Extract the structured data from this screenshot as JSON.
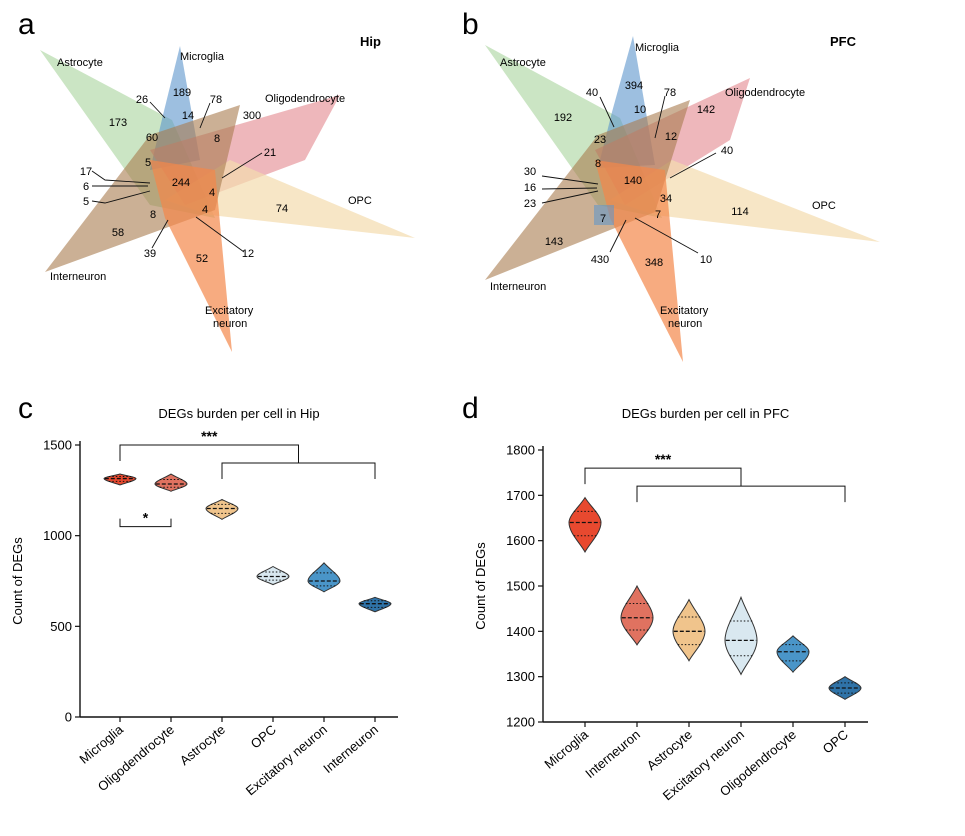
{
  "colors": {
    "microglia": "#e8492f",
    "oligodendrocyte": "#e07260",
    "astrocyte": "#f0c48c",
    "opc": "#d9e8f0",
    "excitatory": "#4a95c8",
    "interneuron": "#2f73a8",
    "venn_astrocyte": "#a8d39c",
    "venn_microglia": "#5b95cc",
    "venn_oligo": "#e07b84",
    "venn_opc": "#f3dcae",
    "venn_excit": "#f4884a",
    "venn_inter": "#a97b4f"
  },
  "panels": {
    "a": {
      "letter": "a",
      "region": "Hip",
      "labels": {
        "astrocyte": "Astrocyte",
        "microglia": "Microglia",
        "oligodendrocyte": "Oligodendrocyte",
        "opc": "OPC",
        "interneuron": "Interneuron",
        "excitatory": "Excitatory neuron"
      },
      "numbers": [
        "189",
        "26",
        "78",
        "14",
        "300",
        "173",
        "60",
        "8",
        "5",
        "21",
        "17",
        "244",
        "6",
        "4",
        "5",
        "8",
        "4",
        "74",
        "58",
        "39",
        "52",
        "12"
      ]
    },
    "b": {
      "letter": "b",
      "region": "PFC",
      "labels": {
        "astrocyte": "Astrocyte",
        "microglia": "Microglia",
        "oligodendrocyte": "Oligodendrocyte",
        "opc": "OPC",
        "interneuron": "Interneuron",
        "excitatory": "Excitatory neuron"
      },
      "numbers": [
        "394",
        "40",
        "10",
        "78",
        "192",
        "23",
        "142",
        "12",
        "40",
        "8",
        "30",
        "140",
        "16",
        "34",
        "23",
        "7",
        "7",
        "114",
        "143",
        "430",
        "348",
        "10"
      ]
    },
    "c": {
      "letter": "c"
    },
    "d": {
      "letter": "d"
    }
  },
  "chart_data": [
    {
      "type": "violin",
      "title": "DEGs burden per cell in Hip",
      "xlabel": "",
      "ylabel": "Count of DEGs",
      "ylim": [
        0,
        1500
      ],
      "yticks": [
        0,
        500,
        1000,
        1500
      ],
      "categories": [
        "Microglia",
        "Oligodendrocyte",
        "Astrocyte",
        "OPC",
        "Excitatory neuron",
        "Interneuron"
      ],
      "medians": [
        1315,
        1285,
        1150,
        775,
        750,
        625
      ],
      "ranges": [
        [
          1280,
          1340
        ],
        [
          1245,
          1340
        ],
        [
          1090,
          1200
        ],
        [
          730,
          830
        ],
        [
          690,
          850
        ],
        [
          580,
          660
        ]
      ],
      "colors": [
        "#e8492f",
        "#e07260",
        "#f0c48c",
        "#d9e8f0",
        "#4a95c8",
        "#2f73a8"
      ],
      "annotations": [
        {
          "label": "***",
          "from": 0,
          "to_range": [
            2,
            5
          ],
          "level": 1500
        },
        {
          "label": "*",
          "from": 0,
          "to": 1,
          "level": 1050
        }
      ]
    },
    {
      "type": "violin",
      "title": "DEGs burden per cell in PFC",
      "xlabel": "",
      "ylabel": "Count of DEGs",
      "ylim": [
        1200,
        1800
      ],
      "yticks": [
        1200,
        1300,
        1400,
        1500,
        1600,
        1700,
        1800
      ],
      "categories": [
        "Microglia",
        "Interneuron",
        "Astrocyte",
        "Excitatory neuron",
        "Oligodendrocyte",
        "OPC"
      ],
      "medians": [
        1640,
        1430,
        1400,
        1380,
        1355,
        1275
      ],
      "ranges": [
        [
          1575,
          1695
        ],
        [
          1370,
          1500
        ],
        [
          1335,
          1470
        ],
        [
          1305,
          1475
        ],
        [
          1310,
          1390
        ],
        [
          1250,
          1300
        ]
      ],
      "colors": [
        "#e8492f",
        "#e07260",
        "#f0c48c",
        "#d9e8f0",
        "#4a95c8",
        "#2f73a8"
      ],
      "annotations": [
        {
          "label": "***",
          "from": 0,
          "to_range": [
            1,
            5
          ],
          "level": 1760
        }
      ]
    }
  ]
}
